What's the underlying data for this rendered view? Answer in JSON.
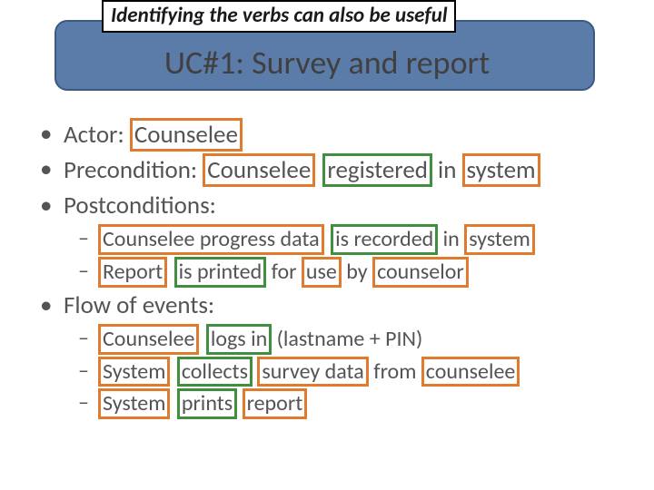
{
  "callout": "Identifying the verbs can also be useful",
  "title": "UC#1: Survey and report",
  "colors": {
    "header_fill": "#5b7ca8",
    "header_border": "#3a5a82",
    "orange_box": "#e07b2e",
    "green_box": "#3f8f3f",
    "background": "#ffffff",
    "text": "#545454"
  },
  "lines": {
    "actor_label": "Actor: ",
    "actor_val": "Counselee",
    "pre_label": "Precondition: ",
    "pre_1": "Counselee",
    "pre_2": "registered",
    "pre_in": " in ",
    "pre_3": "system",
    "post_label": "Postconditions:",
    "post_a_1": "Counselee progress data",
    "post_a_2": "is recorded",
    "post_a_in": " in ",
    "post_a_3": "system",
    "post_b_1": "Report",
    "post_b_2": "is printed",
    "post_b_for": " for ",
    "post_b_3": "use",
    "post_b_by": " by ",
    "post_b_4": "counselor",
    "flow_label": "Flow of events:",
    "flow_a_1": "Counselee",
    "flow_a_2": "logs in",
    "flow_a_rest": " (lastname + PIN)",
    "flow_b_1": "System",
    "flow_b_2": "collects",
    "flow_b_sp": " ",
    "flow_b_3": "survey data",
    "flow_b_from": " from ",
    "flow_b_4": "counselee",
    "flow_c_1": "System",
    "flow_c_2": "prints",
    "flow_c_sp": " ",
    "flow_c_3": "report"
  }
}
